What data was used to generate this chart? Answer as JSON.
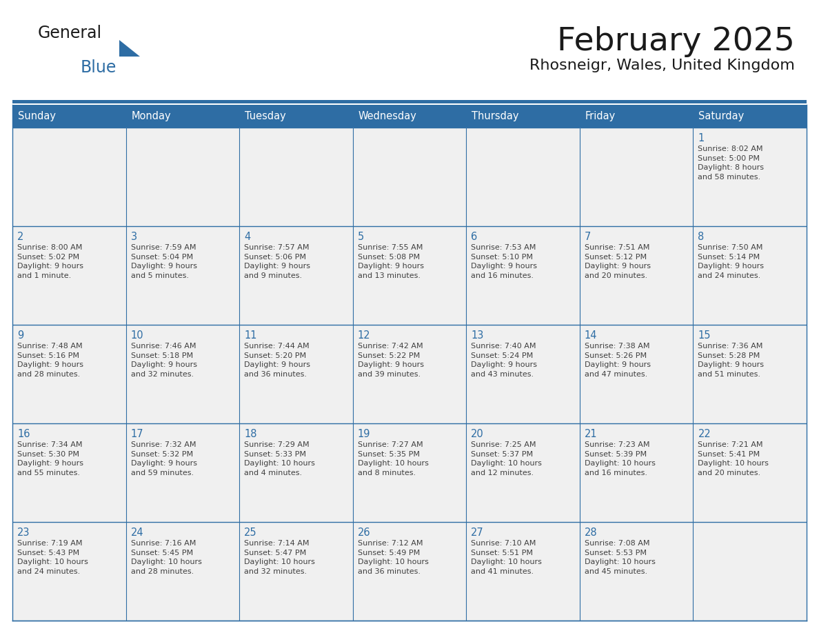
{
  "title": "February 2025",
  "subtitle": "Rhosneigr, Wales, United Kingdom",
  "header_color": "#2E6DA4",
  "header_text_color": "#FFFFFF",
  "cell_bg_color": "#F0F0F0",
  "border_color": "#2E6DA4",
  "text_color": "#404040",
  "day_num_color": "#2E6DA4",
  "days_of_week": [
    "Sunday",
    "Monday",
    "Tuesday",
    "Wednesday",
    "Thursday",
    "Friday",
    "Saturday"
  ],
  "weeks": [
    [
      {
        "day": "",
        "info": ""
      },
      {
        "day": "",
        "info": ""
      },
      {
        "day": "",
        "info": ""
      },
      {
        "day": "",
        "info": ""
      },
      {
        "day": "",
        "info": ""
      },
      {
        "day": "",
        "info": ""
      },
      {
        "day": "1",
        "info": "Sunrise: 8:02 AM\nSunset: 5:00 PM\nDaylight: 8 hours\nand 58 minutes."
      }
    ],
    [
      {
        "day": "2",
        "info": "Sunrise: 8:00 AM\nSunset: 5:02 PM\nDaylight: 9 hours\nand 1 minute."
      },
      {
        "day": "3",
        "info": "Sunrise: 7:59 AM\nSunset: 5:04 PM\nDaylight: 9 hours\nand 5 minutes."
      },
      {
        "day": "4",
        "info": "Sunrise: 7:57 AM\nSunset: 5:06 PM\nDaylight: 9 hours\nand 9 minutes."
      },
      {
        "day": "5",
        "info": "Sunrise: 7:55 AM\nSunset: 5:08 PM\nDaylight: 9 hours\nand 13 minutes."
      },
      {
        "day": "6",
        "info": "Sunrise: 7:53 AM\nSunset: 5:10 PM\nDaylight: 9 hours\nand 16 minutes."
      },
      {
        "day": "7",
        "info": "Sunrise: 7:51 AM\nSunset: 5:12 PM\nDaylight: 9 hours\nand 20 minutes."
      },
      {
        "day": "8",
        "info": "Sunrise: 7:50 AM\nSunset: 5:14 PM\nDaylight: 9 hours\nand 24 minutes."
      }
    ],
    [
      {
        "day": "9",
        "info": "Sunrise: 7:48 AM\nSunset: 5:16 PM\nDaylight: 9 hours\nand 28 minutes."
      },
      {
        "day": "10",
        "info": "Sunrise: 7:46 AM\nSunset: 5:18 PM\nDaylight: 9 hours\nand 32 minutes."
      },
      {
        "day": "11",
        "info": "Sunrise: 7:44 AM\nSunset: 5:20 PM\nDaylight: 9 hours\nand 36 minutes."
      },
      {
        "day": "12",
        "info": "Sunrise: 7:42 AM\nSunset: 5:22 PM\nDaylight: 9 hours\nand 39 minutes."
      },
      {
        "day": "13",
        "info": "Sunrise: 7:40 AM\nSunset: 5:24 PM\nDaylight: 9 hours\nand 43 minutes."
      },
      {
        "day": "14",
        "info": "Sunrise: 7:38 AM\nSunset: 5:26 PM\nDaylight: 9 hours\nand 47 minutes."
      },
      {
        "day": "15",
        "info": "Sunrise: 7:36 AM\nSunset: 5:28 PM\nDaylight: 9 hours\nand 51 minutes."
      }
    ],
    [
      {
        "day": "16",
        "info": "Sunrise: 7:34 AM\nSunset: 5:30 PM\nDaylight: 9 hours\nand 55 minutes."
      },
      {
        "day": "17",
        "info": "Sunrise: 7:32 AM\nSunset: 5:32 PM\nDaylight: 9 hours\nand 59 minutes."
      },
      {
        "day": "18",
        "info": "Sunrise: 7:29 AM\nSunset: 5:33 PM\nDaylight: 10 hours\nand 4 minutes."
      },
      {
        "day": "19",
        "info": "Sunrise: 7:27 AM\nSunset: 5:35 PM\nDaylight: 10 hours\nand 8 minutes."
      },
      {
        "day": "20",
        "info": "Sunrise: 7:25 AM\nSunset: 5:37 PM\nDaylight: 10 hours\nand 12 minutes."
      },
      {
        "day": "21",
        "info": "Sunrise: 7:23 AM\nSunset: 5:39 PM\nDaylight: 10 hours\nand 16 minutes."
      },
      {
        "day": "22",
        "info": "Sunrise: 7:21 AM\nSunset: 5:41 PM\nDaylight: 10 hours\nand 20 minutes."
      }
    ],
    [
      {
        "day": "23",
        "info": "Sunrise: 7:19 AM\nSunset: 5:43 PM\nDaylight: 10 hours\nand 24 minutes."
      },
      {
        "day": "24",
        "info": "Sunrise: 7:16 AM\nSunset: 5:45 PM\nDaylight: 10 hours\nand 28 minutes."
      },
      {
        "day": "25",
        "info": "Sunrise: 7:14 AM\nSunset: 5:47 PM\nDaylight: 10 hours\nand 32 minutes."
      },
      {
        "day": "26",
        "info": "Sunrise: 7:12 AM\nSunset: 5:49 PM\nDaylight: 10 hours\nand 36 minutes."
      },
      {
        "day": "27",
        "info": "Sunrise: 7:10 AM\nSunset: 5:51 PM\nDaylight: 10 hours\nand 41 minutes."
      },
      {
        "day": "28",
        "info": "Sunrise: 7:08 AM\nSunset: 5:53 PM\nDaylight: 10 hours\nand 45 minutes."
      },
      {
        "day": "",
        "info": ""
      }
    ]
  ],
  "logo_general_color": "#1a1a1a",
  "logo_blue_color": "#2E6DA4"
}
